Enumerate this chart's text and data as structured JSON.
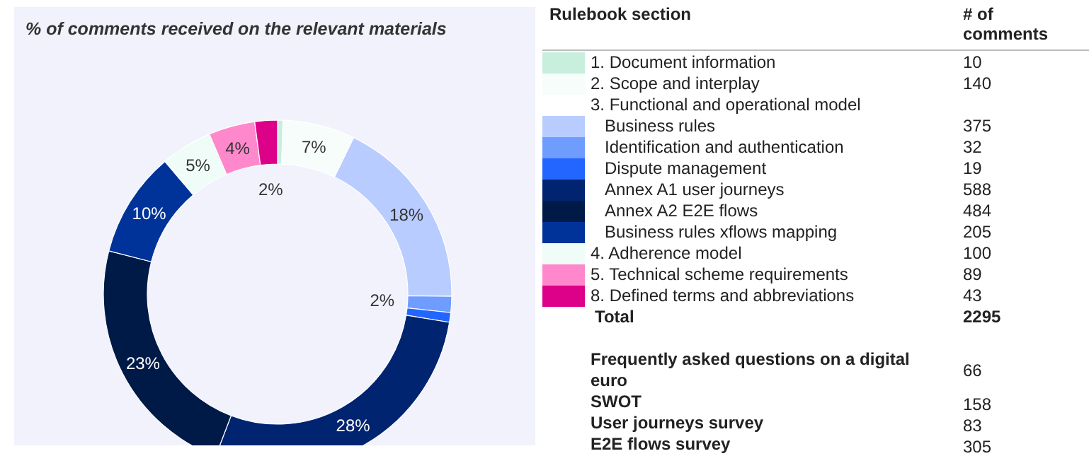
{
  "chart_data": {
    "type": "donut",
    "title": "% of comments received on the relevant materials",
    "legend_title": "Rulebook section",
    "categories": [
      "1. Document information",
      "2. Scope and interplay",
      "Business rules",
      "Identification and authentication",
      "Dispute management",
      "Annex A1 user journeys",
      "Annex A2 E2E flows",
      "Business rules xflows mapping",
      "4. Adherence model",
      "5. Technical scheme requirements",
      "8. Defined terms and abbreviations"
    ],
    "values": [
      0.5,
      6.7,
      18,
      1.5,
      0.9,
      28.2,
      23.2,
      9.8,
      4.8,
      4.3,
      2.1
    ],
    "colors": [
      "#c8eede",
      "#f7fdfb",
      "#b9ccff",
      "#6f9cff",
      "#2266ff",
      "#002470",
      "#001a48",
      "#003399",
      "#effcf7",
      "#ff88cc",
      "#dd0088"
    ],
    "value_labels": [
      null,
      "7%",
      "18%",
      "2%",
      null,
      "28%",
      "23%",
      "10%",
      "5%",
      "4%",
      "2%"
    ],
    "legend": "right",
    "annotations": [
      "# of comments",
      "10",
      "140",
      "3. Functional and operational model",
      "375",
      "32",
      "19",
      "588",
      "484",
      "205",
      "100",
      "89",
      "43",
      "Total",
      "2295",
      "Frequently asked questions on a digital euro",
      "66",
      "SWOT",
      "158",
      "User journeys survey",
      "83",
      "E2E flows survey",
      "305"
    ]
  }
}
